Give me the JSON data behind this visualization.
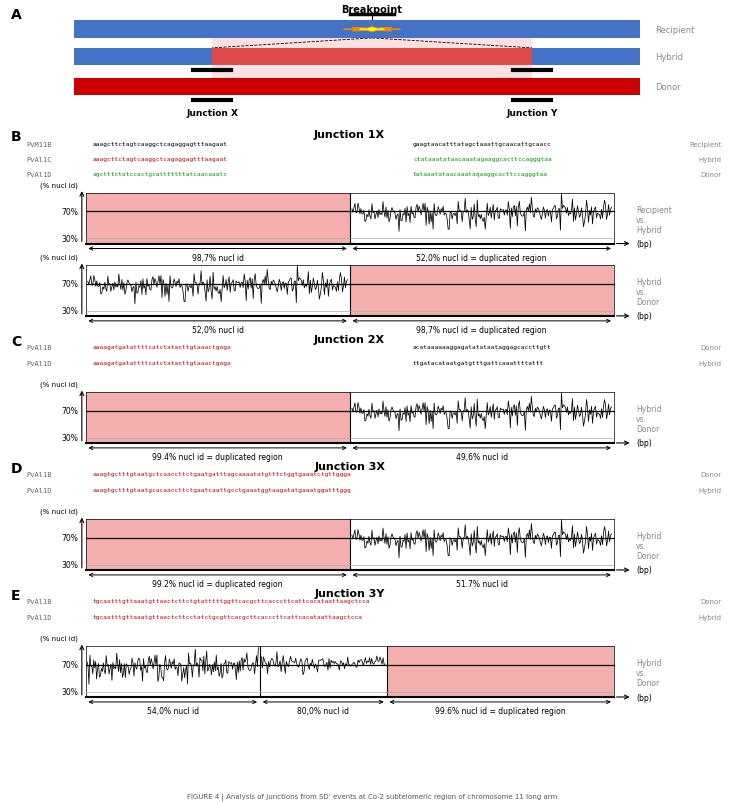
{
  "panel_A": {
    "label": "A",
    "bar_colors": {
      "recipient": "#4472C4",
      "donor": "#cc0000",
      "hybrid_blue": "#4472C4",
      "hybrid_red": "#cc0000"
    },
    "pink": "#F5AAAA"
  },
  "panel_B": {
    "label": "B",
    "title": "Junction 1X",
    "seqs": [
      {
        "name": "PvM11B",
        "tag": "Recipient",
        "left": "aaagcttctagtcaaggctcagaggagtttaagaat",
        "right": "gaagtaacatttatagctaaattgcaacattgcaacc",
        "lc": "black",
        "rc": "black"
      },
      {
        "name": "PvAl1C",
        "tag": "Hybrid",
        "left": "aaagcttctagtcaaggctcagaggagtttaagaat",
        "right": "ctataaatataacaaatagaaggcacttccagggtaa",
        "lc": "#cc0000",
        "rc": "#009900"
      },
      {
        "name": "PvAl1D",
        "tag": "Donor",
        "left": "agctttctatccactgcatttttttatcaacaaatc",
        "right": "tataaatataacaaataqaaggcacttccagggtaa",
        "lc": "#009900",
        "rc": "#009900"
      }
    ],
    "charts": [
      {
        "left_shaded": true,
        "split": 0.5,
        "ll": "98,7% nucl id",
        "lr": "52,0% nucl id = duplicated region",
        "side": [
          "Recipient",
          "vs.",
          "Hybrid"
        ]
      },
      {
        "left_shaded": false,
        "split": 0.5,
        "ll": "52,0% nucl id",
        "lr": "98,7% nucl id = duplicated region",
        "side": [
          "Hybrid",
          "vs.",
          "Donor"
        ]
      }
    ]
  },
  "panel_C": {
    "label": "C",
    "title": "Junction 2X",
    "seqs": [
      {
        "name": "PvAl1B",
        "tag": "Donor",
        "left": "aaaagatgatattttcatctatacttgtaaactgaga",
        "right": "acataaaaaaggagatatataataggagcaccttgtt",
        "lc": "#cc0000",
        "rc": "black"
      },
      {
        "name": "PvAl1D",
        "tag": "Hybrid",
        "left": "aaaagatgatattttcatctatacttgtaaactgaga",
        "right": "ttgatacataatgatgtttgattcaaattttattt",
        "lc": "#cc0000",
        "rc": "black"
      }
    ],
    "charts": [
      {
        "left_shaded": true,
        "split": 0.5,
        "ll": "99.4% nucl id = duplicated region",
        "lr": "49,6% nucl id",
        "side": [
          "Hybrid",
          "vs.",
          "Donor"
        ]
      }
    ]
  },
  "panel_D": {
    "label": "D",
    "title": "Junction 3X",
    "seqs": [
      {
        "name": "PvAl1B",
        "tag": "Donor",
        "left": "aaagtgctttgtaatgctcaaccttctgaatgatttagcaaaatatgtttctggtgaaatctgttggga",
        "right": "",
        "lc": "#cc0000",
        "rc": "black"
      },
      {
        "name": "PvAl1D",
        "tag": "Hybrid",
        "left": "aaagtgctttgtaatgcacaaccttctgaatcaattgcctgaaatggtaagatatgaaatggatttggg",
        "right": "",
        "lc": "#cc0000",
        "rc": "black"
      }
    ],
    "charts": [
      {
        "left_shaded": true,
        "split": 0.5,
        "ll": "99.2% nucl id = duplicated region",
        "lr": "51.7% nucl id",
        "side": [
          "Hybrid",
          "vs.",
          "Donor"
        ]
      }
    ]
  },
  "panel_E": {
    "label": "E",
    "title": "Junction 3Y",
    "seqs": [
      {
        "name": "PvAl1B",
        "tag": "Donor",
        "left": "tgcaatttgttaaatgttaactcttctgtatttttggttcacgcttcacccttcattcacataattaagctcca",
        "right": "",
        "lc": "#cc0000",
        "rc": "black"
      },
      {
        "name": "PvAl1D",
        "tag": "Hybrid",
        "left": "tgcaatttgttaaatgttaactcttcctatctgcgttcacgcttcacccttcattcacataattaagctcca",
        "right": "",
        "lc": "#cc0000",
        "rc": "black"
      }
    ],
    "charts": [
      {
        "special_E": true,
        "sp1": 0.33,
        "sp2": 0.57,
        "ll": "54,0% nucl id",
        "lm": "80,0% nucl id",
        "lr": "99.6% nucl id = duplicated region",
        "side": [
          "Hybrid",
          "vs.",
          "Donor"
        ]
      }
    ]
  }
}
